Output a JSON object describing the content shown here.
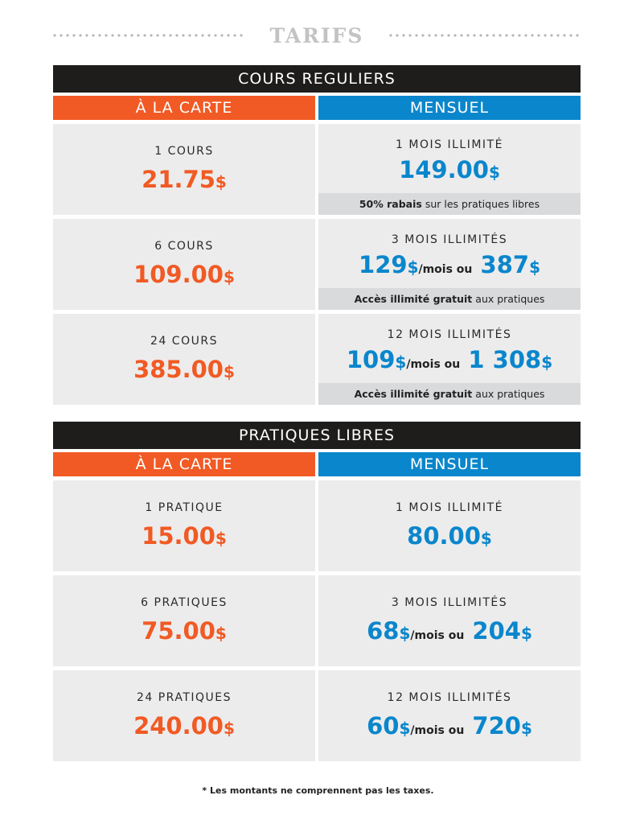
{
  "title": "TARIFS",
  "sections": [
    {
      "heading": "COURS REGULIERS",
      "left_head": "À LA CARTE",
      "right_head": "MENSUEL",
      "rows": [
        {
          "left": {
            "label": "1 COURS",
            "price": "21.75",
            "cur": "$"
          },
          "right": {
            "label": "1 MOIS ILLIMITÉ",
            "price": "149.00",
            "cur": "$",
            "band_bold": "50% rabais",
            "band_rest": "sur les pratiques libres"
          }
        },
        {
          "left": {
            "label": "6 COURS",
            "price": "109.00",
            "cur": "$"
          },
          "right": {
            "label": "3 MOIS ILLIMITÉS",
            "price": "129",
            "cur": "$",
            "mid": "/mois ou",
            "price2": "387",
            "cur2": "$",
            "band_bold": "Accès illimité gratuit",
            "band_rest": "aux pratiques"
          }
        },
        {
          "left": {
            "label": "24 COURS",
            "price": "385.00",
            "cur": "$"
          },
          "right": {
            "label": "12 MOIS ILLIMITÉS",
            "price": "109",
            "cur": "$",
            "mid": "/mois ou",
            "price2": "1 308",
            "cur2": "$",
            "band_bold": "Accès illimité gratuit",
            "band_rest": "aux pratiques"
          }
        }
      ]
    },
    {
      "heading": "PRATIQUES LIBRES",
      "left_head": "À LA CARTE",
      "right_head": "MENSUEL",
      "rows": [
        {
          "left": {
            "label": "1 PRATIQUE",
            "price": "15.00",
            "cur": "$"
          },
          "right": {
            "label": "1 MOIS ILLIMITÉ",
            "price": "80.00",
            "cur": "$"
          }
        },
        {
          "left": {
            "label": "6 PRATIQUES",
            "price": "75.00",
            "cur": "$"
          },
          "right": {
            "label": "3 MOIS ILLIMITÉS",
            "price": "68",
            "cur": "$",
            "mid": "/mois ou",
            "price2": "204",
            "cur2": "$"
          }
        },
        {
          "left": {
            "label": "24 PRATIQUES",
            "price": "240.00",
            "cur": "$"
          },
          "right": {
            "label": "12 MOIS ILLIMITÉS",
            "price": "60",
            "cur": "$",
            "mid": "/mois ou",
            "price2": "720",
            "cur2": "$"
          }
        }
      ]
    }
  ],
  "footnote": "* Les montants ne comprennent pas les taxes.",
  "colors": {
    "orange": "#f15a24",
    "blue": "#0a86cc",
    "dark": "#1e1d1b"
  }
}
